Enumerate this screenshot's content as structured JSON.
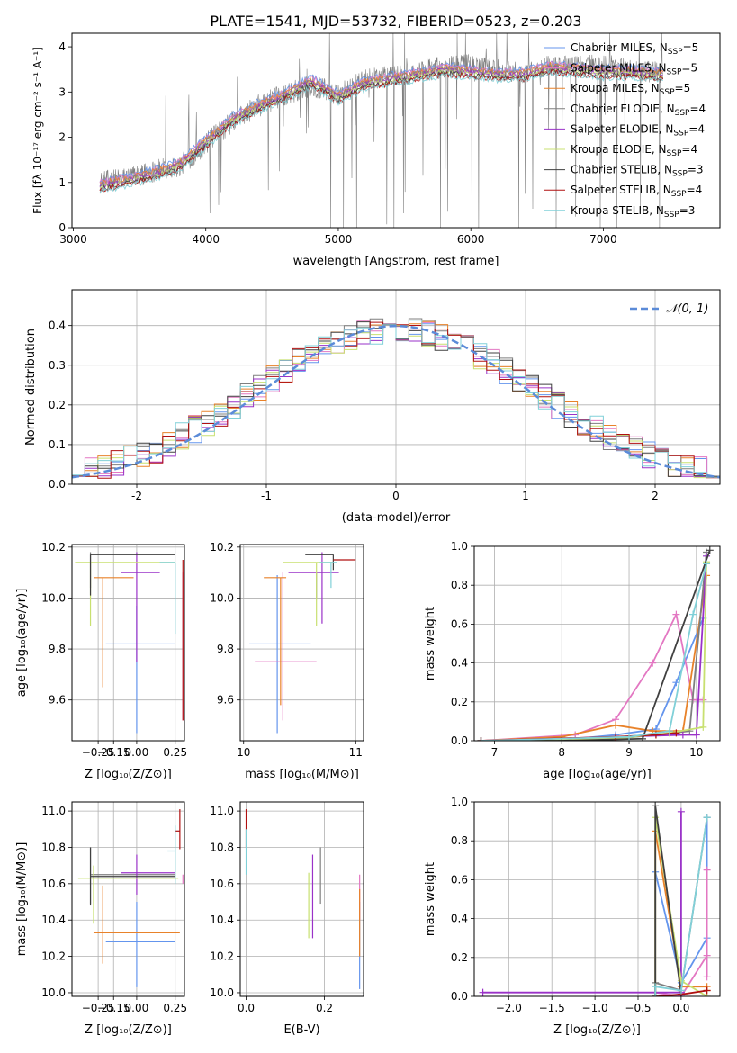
{
  "title": "PLATE=1541, MJD=53732, FIBERID=0523, z=0.203",
  "colors": [
    "#6495ED",
    "#E377C2",
    "#E8822A",
    "#7F7F7F",
    "#9A32C8",
    "#C8E070",
    "#404040",
    "#B01010",
    "#80D0D8"
  ],
  "legend_spectrum": [
    {
      "prefix": "Chabrier MILES, N",
      "sub": "SSP",
      "suffix": "=5"
    },
    {
      "prefix": "Salpeter MILES, N",
      "sub": "SSP",
      "suffix": "=5"
    },
    {
      "prefix": "Kroupa MILES, N",
      "sub": "SSP",
      "suffix": "=5"
    },
    {
      "prefix": "Chabrier ELODIE, N",
      "sub": "SSP",
      "suffix": "=4"
    },
    {
      "prefix": "Salpeter ELODIE, N",
      "sub": "SSP",
      "suffix": "=4"
    },
    {
      "prefix": "Kroupa ELODIE, N",
      "sub": "SSP",
      "suffix": "=4"
    },
    {
      "prefix": "Chabrier STELIB, N",
      "sub": "SSP",
      "suffix": "=3"
    },
    {
      "prefix": "Salpeter STELIB, N",
      "sub": "SSP",
      "suffix": "=4"
    },
    {
      "prefix": "Kroupa STELIB, N",
      "sub": "SSP",
      "suffix": "=3"
    }
  ],
  "chart_data": [
    {
      "type": "line",
      "xlabel": "wavelength [Angstrom, rest frame]",
      "ylabel": "Flux [fλ 10⁻¹⁷ erg cm⁻² s⁻¹ A⁻¹]",
      "xlim": [
        2990,
        7880
      ],
      "ylim": [
        0,
        4.3
      ],
      "xticks": [
        3000,
        4000,
        5000,
        6000,
        7000
      ],
      "yticks": [
        0,
        1,
        2,
        3,
        4
      ],
      "grid": false,
      "x": [
        3200,
        3400,
        3600,
        3800,
        4000,
        4200,
        4400,
        4600,
        4800,
        5000,
        5200,
        5400,
        5600,
        5800,
        6000,
        6200,
        6400,
        6600,
        6800,
        7000,
        7200,
        7400
      ],
      "data": [
        1.0,
        1.1,
        1.25,
        1.35,
        1.85,
        2.35,
        2.7,
        2.95,
        3.15,
        2.95,
        3.25,
        3.35,
        3.45,
        3.55,
        3.6,
        3.5,
        3.45,
        3.6,
        3.55,
        3.6,
        3.5,
        3.45
      ],
      "model": [
        1.05,
        1.15,
        1.3,
        1.5,
        2.0,
        2.5,
        2.8,
        3.05,
        3.35,
        3.0,
        3.3,
        3.4,
        3.5,
        3.6,
        3.55,
        3.5,
        3.5,
        3.65,
        3.6,
        3.55,
        3.55,
        3.5
      ]
    },
    {
      "type": "histogram",
      "xlabel": "(data-model)/error",
      "ylabel": "Normed distribution",
      "xlim": [
        -2.5,
        2.5
      ],
      "ylim": [
        0,
        0.49
      ],
      "xticks": [
        -2,
        -1,
        0,
        1,
        2
      ],
      "yticks": [
        0.0,
        0.1,
        0.2,
        0.3,
        0.4
      ],
      "grid": true,
      "legend": [
        {
          "name": "𝒩(0, 1)",
          "style": "dashed"
        }
      ],
      "bin_width": 0.1,
      "bin_start": -2.5,
      "reference_curve": {
        "mean": 0,
        "sigma": 1
      }
    },
    {
      "type": "errorbar",
      "xlabel": "Z [log₁₀(Z/Z⊙)]",
      "ylabel": "age  [log₁₀(age/yr)]",
      "xlim": [
        -0.42,
        0.31
      ],
      "ylim": [
        9.44,
        10.21
      ],
      "xticks": [
        -0.25,
        -0.15,
        0.0,
        0.25
      ],
      "xticklabels": [
        "−0.25",
        "−0.15",
        "0.00",
        "0.25"
      ],
      "yticks": [
        9.6,
        9.8,
        10.0,
        10.2
      ],
      "yticklabels": [
        "9.6",
        "9.8",
        "10.0",
        "10.2"
      ],
      "grid": true,
      "points": [
        {
          "x": 0.0,
          "y": 9.82,
          "xerr": [
            0.2,
            0.25
          ],
          "yerr": [
            0.35,
            0.15
          ]
        },
        {
          "x": 0.3,
          "y": 9.75,
          "xerr": [
            0.0,
            0.0
          ],
          "yerr": [
            0.23,
            0.35
          ]
        },
        {
          "x": -0.22,
          "y": 10.08,
          "xerr": [
            0.06,
            0.2
          ],
          "yerr": [
            0.43,
            0.0
          ]
        },
        {
          "x": -0.3,
          "y": 10.1,
          "xerr": [
            0.0,
            0.0
          ],
          "yerr": [
            0.06,
            0.08
          ]
        },
        {
          "x": 0.0,
          "y": 10.1,
          "xerr": [
            0.1,
            0.15
          ],
          "yerr": [
            0.35,
            0.08
          ]
        },
        {
          "x": -0.3,
          "y": 10.14,
          "xerr": [
            0.1,
            0.55
          ],
          "yerr": [
            0.25,
            0.0
          ]
        },
        {
          "x": -0.3,
          "y": 10.17,
          "xerr": [
            0.0,
            0.55
          ],
          "yerr": [
            0.16,
            0.0
          ]
        },
        {
          "x": 0.3,
          "y": 10.15,
          "xerr": [
            0.0,
            0.0
          ],
          "yerr": [
            0.63,
            0.0
          ]
        },
        {
          "x": 0.25,
          "y": 10.14,
          "xerr": [
            0.1,
            0.0
          ],
          "yerr": [
            0.28,
            0.0
          ]
        }
      ]
    },
    {
      "type": "errorbar",
      "xlabel": "mass [log₁₀(M/M⊙)]",
      "ylabel": "",
      "xlim": [
        9.97,
        11.07
      ],
      "ylim": [
        9.44,
        10.21
      ],
      "xticks": [
        10,
        11
      ],
      "xticklabels": [
        "10",
        "11"
      ],
      "yticks": [
        9.6,
        9.8,
        10.0,
        10.2
      ],
      "yticklabels": [
        "9.6",
        "9.8",
        "10.0",
        "10.2"
      ],
      "grid": true,
      "points": [
        {
          "x": 10.3,
          "y": 9.82,
          "xerr": [
            0.25,
            0.3
          ],
          "yerr": [
            0.35,
            0.27
          ]
        },
        {
          "x": 10.35,
          "y": 9.75,
          "xerr": [
            0.25,
            0.3
          ],
          "yerr": [
            0.23,
            0.35
          ]
        },
        {
          "x": 10.33,
          "y": 10.08,
          "xerr": [
            0.15,
            0.05
          ],
          "yerr": [
            0.5,
            0.0
          ]
        },
        {
          "x": 10.65,
          "y": 10.1,
          "xerr": [
            0.0,
            0.0
          ],
          "yerr": [
            0.1,
            0.0
          ]
        },
        {
          "x": 10.7,
          "y": 10.1,
          "xerr": [
            0.3,
            0.15
          ],
          "yerr": [
            0.2,
            0.08
          ]
        },
        {
          "x": 10.65,
          "y": 10.14,
          "xerr": [
            0.3,
            0.15
          ],
          "yerr": [
            0.25,
            0.0
          ]
        },
        {
          "x": 10.8,
          "y": 10.17,
          "xerr": [
            0.25,
            0.0
          ],
          "yerr": [
            0.06,
            0.0
          ]
        },
        {
          "x": 11.0,
          "y": 10.15,
          "xerr": [
            0.2,
            0.0
          ],
          "yerr": [
            0.0,
            0.0
          ]
        },
        {
          "x": 10.78,
          "y": 10.14,
          "xerr": [
            0.1,
            0.05
          ],
          "yerr": [
            0.1,
            0.0
          ]
        }
      ]
    },
    {
      "type": "line",
      "xlabel": "age  [log₁₀(age/yr)]",
      "ylabel": "mass weight",
      "xlim": [
        6.7,
        10.35
      ],
      "ylim": [
        0,
        1.0
      ],
      "xticks": [
        7,
        8,
        9,
        10
      ],
      "yticks": [
        0.0,
        0.2,
        0.4,
        0.6,
        0.8,
        1.0
      ],
      "grid": true,
      "series": [
        {
          "x": [
            6.8,
            8.2,
            8.8,
            9.4,
            9.7,
            10.1
          ],
          "y": [
            0.0,
            0.01,
            0.03,
            0.06,
            0.3,
            0.63
          ]
        },
        {
          "x": [
            6.8,
            8.2,
            8.8,
            9.35,
            9.7,
            9.95,
            10.1
          ],
          "y": [
            0.0,
            0.03,
            0.11,
            0.4,
            0.65,
            0.21,
            0.21
          ]
        },
        {
          "x": [
            6.8,
            8.0,
            8.8,
            9.35,
            9.8,
            10.15
          ],
          "y": [
            0.0,
            0.02,
            0.08,
            0.05,
            0.05,
            0.85
          ]
        },
        {
          "x": [
            6.8,
            8.8,
            9.4,
            9.9,
            10.15
          ],
          "y": [
            0.0,
            0.01,
            0.03,
            0.05,
            0.97
          ]
        },
        {
          "x": [
            6.8,
            8.8,
            9.8,
            10.0,
            10.15
          ],
          "y": [
            0.0,
            0.02,
            0.03,
            0.03,
            0.95
          ]
        },
        {
          "x": [
            6.8,
            8.8,
            9.6,
            10.1,
            10.15
          ],
          "y": [
            0.0,
            0.01,
            0.04,
            0.07,
            0.92
          ]
        },
        {
          "x": [
            6.8,
            8.0,
            9.2,
            10.2
          ],
          "y": [
            0.0,
            0.0,
            0.01,
            0.98
          ]
        },
        {
          "x": [
            6.8,
            8.8,
            9.4,
            9.7
          ],
          "y": [
            0.0,
            0.02,
            0.03,
            0.04
          ]
        },
        {
          "x": [
            6.8,
            9.0,
            9.6,
            9.95,
            10.15
          ],
          "y": [
            0.0,
            0.02,
            0.05,
            0.65,
            0.91
          ]
        }
      ]
    },
    {
      "type": "errorbar",
      "xlabel": "Z [log₁₀(Z/Z⊙)]",
      "ylabel": "mass [log₁₀(M/M⊙)]",
      "xlim": [
        -0.42,
        0.31
      ],
      "ylim": [
        9.98,
        11.05
      ],
      "xticks": [
        -0.25,
        -0.15,
        0.0,
        0.25
      ],
      "xticklabels": [
        "−0.25",
        "−0.15",
        "0.00",
        "0.25"
      ],
      "yticks": [
        10.0,
        10.2,
        10.4,
        10.6,
        10.8,
        11.0
      ],
      "yticklabels": [
        "10.0",
        "10.2",
        "10.4",
        "10.6",
        "10.8",
        "11.0"
      ],
      "grid": true,
      "points": [
        {
          "x": 0.0,
          "y": 10.28,
          "xerr": [
            0.2,
            0.25
          ],
          "yerr": [
            0.25,
            0.22
          ]
        },
        {
          "x": 0.3,
          "y": 10.6,
          "xerr": [
            0.0,
            0.0
          ],
          "yerr": [
            0.0,
            0.05
          ]
        },
        {
          "x": -0.22,
          "y": 10.33,
          "xerr": [
            0.06,
            0.5
          ],
          "yerr": [
            0.17,
            0.26
          ]
        },
        {
          "x": -0.3,
          "y": 10.65,
          "xerr": [
            0.0,
            0.55
          ],
          "yerr": [
            0.16,
            0.15
          ]
        },
        {
          "x": 0.0,
          "y": 10.66,
          "xerr": [
            0.1,
            0.25
          ],
          "yerr": [
            0.12,
            0.1
          ]
        },
        {
          "x": -0.28,
          "y": 10.63,
          "xerr": [
            0.1,
            0.55
          ],
          "yerr": [
            0.25,
            0.07
          ]
        },
        {
          "x": -0.3,
          "y": 10.64,
          "xerr": [
            0.0,
            0.55
          ],
          "yerr": [
            0.16,
            0.16
          ]
        },
        {
          "x": 0.28,
          "y": 10.89,
          "xerr": [
            0.03,
            0.0
          ],
          "yerr": [
            0.1,
            0.12
          ]
        },
        {
          "x": 0.25,
          "y": 10.78,
          "xerr": [
            0.05,
            0.0
          ],
          "yerr": [
            0.18,
            0.14
          ]
        }
      ]
    },
    {
      "type": "errorbar",
      "xlabel": "E(B-V)",
      "ylabel": "",
      "xlim": [
        -0.015,
        0.3
      ],
      "ylim": [
        9.98,
        11.05
      ],
      "xticks": [
        0.0,
        0.2
      ],
      "xticklabels": [
        "0.0",
        "0.2"
      ],
      "yticks": [
        10.0,
        10.2,
        10.4,
        10.6,
        10.8,
        11.0
      ],
      "yticklabels": [
        "10.0",
        "10.2",
        "10.4",
        "10.6",
        "10.8",
        "11.0"
      ],
      "grid": true,
      "points": [
        {
          "x": 0.29,
          "y": 10.2,
          "xerr": [
            0.0,
            0.0
          ],
          "yerr": [
            0.18,
            0.3
          ]
        },
        {
          "x": 0.29,
          "y": 10.4,
          "xerr": [
            0.0,
            0.0
          ],
          "yerr": [
            0.0,
            0.25
          ]
        },
        {
          "x": 0.29,
          "y": 10.35,
          "xerr": [
            0.0,
            0.0
          ],
          "yerr": [
            0.15,
            0.22
          ]
        },
        {
          "x": 0.19,
          "y": 10.64,
          "xerr": [
            0.0,
            0.0
          ],
          "yerr": [
            0.15,
            0.16
          ]
        },
        {
          "x": 0.17,
          "y": 10.6,
          "xerr": [
            0.0,
            0.0
          ],
          "yerr": [
            0.3,
            0.16
          ]
        },
        {
          "x": 0.16,
          "y": 10.5,
          "xerr": [
            0.0,
            0.0
          ],
          "yerr": [
            0.2,
            0.16
          ]
        },
        {
          "x": 0.0,
          "y": 10.6,
          "xerr": [
            0.0,
            0.0
          ],
          "yerr": [
            0.0,
            0.0
          ]
        },
        {
          "x": 0.0,
          "y": 10.9,
          "xerr": [
            0.0,
            0.0
          ],
          "yerr": [
            0.1,
            0.11
          ]
        },
        {
          "x": 0.0,
          "y": 10.75,
          "xerr": [
            0.0,
            0.0
          ],
          "yerr": [
            0.1,
            0.15
          ]
        }
      ]
    },
    {
      "type": "line",
      "xlabel": "Z [log₁₀(Z/Z⊙)]",
      "ylabel": "mass weight",
      "xlim": [
        -2.4,
        0.45
      ],
      "ylim": [
        0,
        1.0
      ],
      "xticks": [
        -2.0,
        -1.5,
        -1.0,
        -0.5,
        0.0
      ],
      "xticklabels": [
        "−2.0",
        "−1.5",
        "−1.0",
        "−0.5",
        "0.0"
      ],
      "yticks": [
        0.0,
        0.2,
        0.4,
        0.6,
        0.8,
        1.0
      ],
      "grid": true,
      "series": [
        {
          "x": [
            -0.3,
            -0.3,
            0.0,
            0.3,
            0.3
          ],
          "y": [
            0.0,
            0.64,
            0.07,
            0.3,
            0.92
          ]
        },
        {
          "x": [
            -0.3,
            0.0,
            0.3,
            0.3,
            0.3
          ],
          "y": [
            0.02,
            0.0,
            0.21,
            0.1,
            0.65
          ]
        },
        {
          "x": [
            -0.3,
            -0.3,
            0.0,
            0.3,
            0.3
          ],
          "y": [
            0.0,
            0.85,
            0.05,
            0.05,
            0.03
          ]
        },
        {
          "x": [
            -0.3,
            -0.3,
            0.0,
            0.3
          ],
          "y": [
            0.0,
            0.07,
            0.03,
            0.92
          ]
        },
        {
          "x": [
            -2.3,
            -0.3,
            0.0,
            0.0,
            0.0
          ],
          "y": [
            0.02,
            0.02,
            0.02,
            0.95,
            0.0
          ]
        },
        {
          "x": [
            -0.3,
            -0.3,
            0.0,
            0.3
          ],
          "y": [
            0.0,
            0.92,
            0.08,
            0.0
          ]
        },
        {
          "x": [
            -0.3,
            -0.3,
            0.0
          ],
          "y": [
            0.0,
            0.98,
            0.01
          ]
        },
        {
          "x": [
            -0.3,
            0.0,
            0.3
          ],
          "y": [
            0.0,
            0.01,
            0.03
          ]
        },
        {
          "x": [
            -0.3,
            -0.3,
            0.0,
            0.3
          ],
          "y": [
            0.0,
            0.05,
            0.03,
            0.92
          ]
        }
      ]
    }
  ]
}
